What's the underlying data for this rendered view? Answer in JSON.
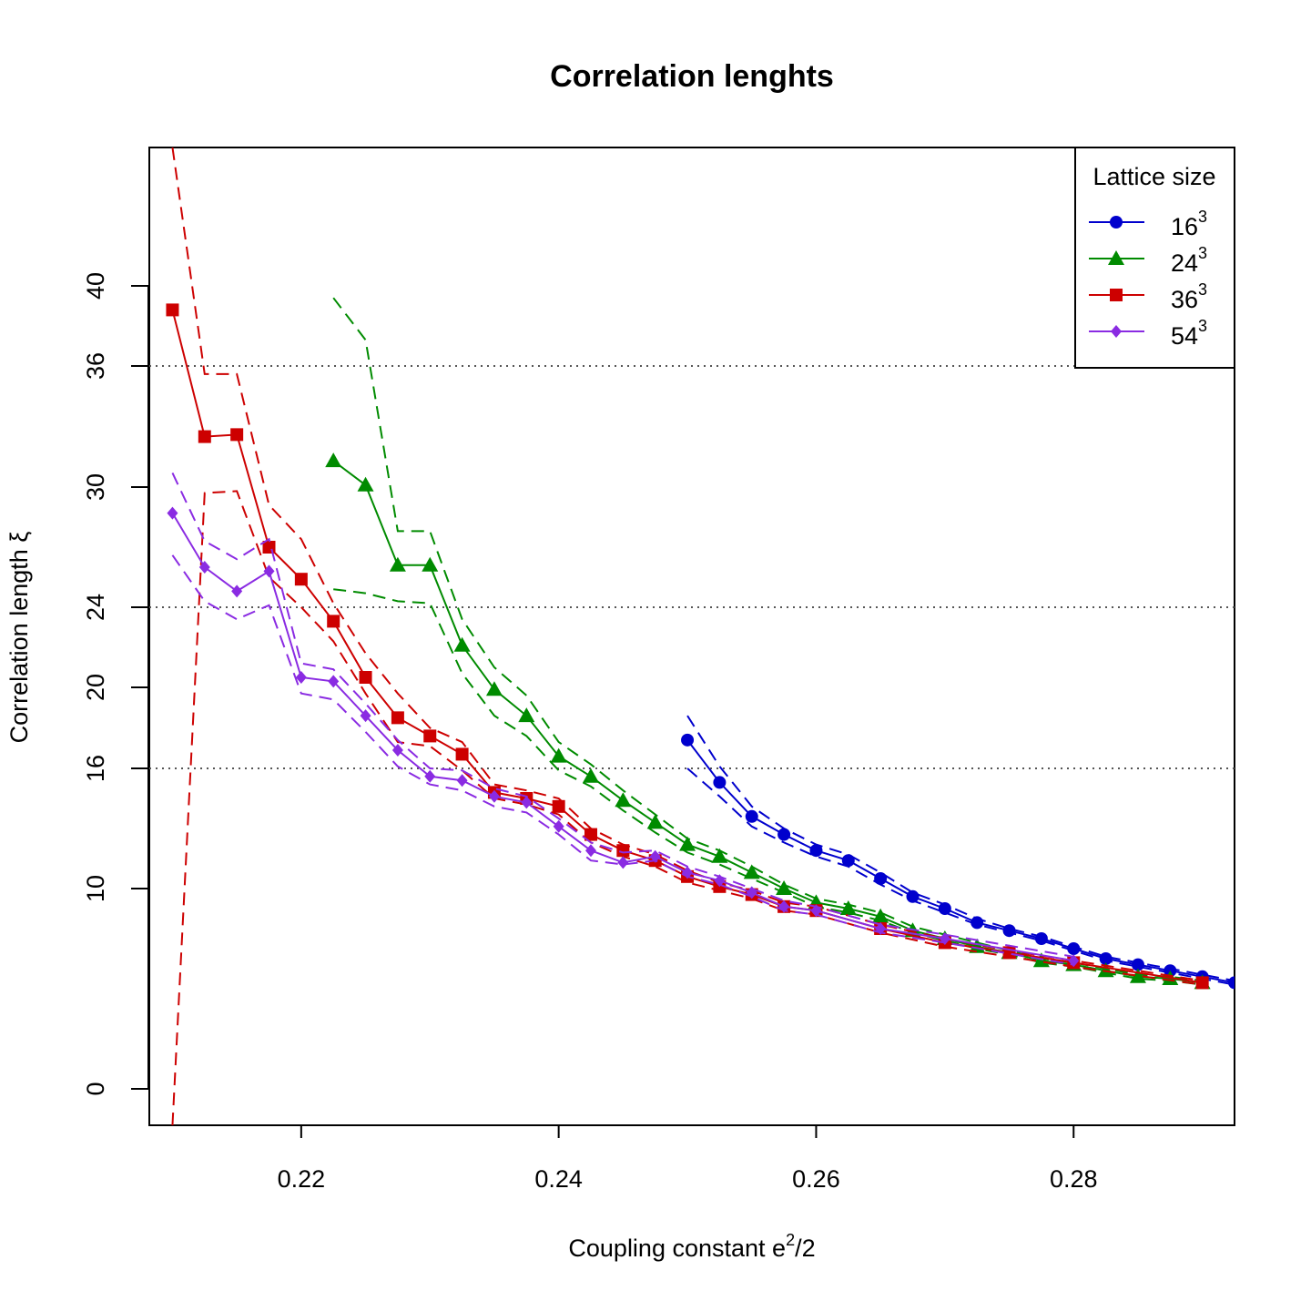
{
  "chart_data": {
    "type": "line",
    "title": "Correlation lenghts",
    "xlabel": "Coupling constant e^2/2",
    "xlabel_parts": {
      "base": "Coupling constant e",
      "sup": "2",
      "rest": "/2"
    },
    "ylabel": "Correlation length ξ",
    "x_ticks": [
      0.22,
      0.24,
      0.26,
      0.28
    ],
    "x_tick_labels": [
      "0.22",
      "0.24",
      "0.26",
      "0.28"
    ],
    "y_ticks": [
      0,
      10,
      16,
      20,
      24,
      30,
      36,
      40
    ],
    "y_tick_labels": [
      "0",
      "10",
      "16",
      "20",
      "24",
      "30",
      "36",
      "40"
    ],
    "hlines": [
      16,
      24,
      36
    ],
    "grid": false,
    "xlim": [
      0.2082,
      0.2925
    ],
    "ylim": [
      -1.8,
      46.8
    ],
    "legend": {
      "title": "Lattice size",
      "position": "top-right",
      "entries": [
        {
          "base": "16",
          "sup": "3"
        },
        {
          "base": "24",
          "sup": "3"
        },
        {
          "base": "36",
          "sup": "3"
        },
        {
          "base": "54",
          "sup": "3"
        }
      ]
    },
    "series": [
      {
        "name": "16^3",
        "color": "#0000CD",
        "marker": "circle",
        "x": [
          0.25,
          0.2525,
          0.255,
          0.2575,
          0.26,
          0.2625,
          0.265,
          0.2675,
          0.27,
          0.2725,
          0.275,
          0.2775,
          0.28,
          0.2825,
          0.285,
          0.2875,
          0.29,
          0.2925
        ],
        "y": [
          17.4,
          15.3,
          13.6,
          12.7,
          11.9,
          11.4,
          10.5,
          9.6,
          9.0,
          8.3,
          7.9,
          7.5,
          7.0,
          6.5,
          6.2,
          5.9,
          5.6,
          5.3
        ],
        "upper": [
          18.6,
          16.1,
          14.1,
          13.0,
          12.2,
          11.7,
          10.8,
          9.8,
          9.2,
          8.5,
          8.0,
          7.6,
          7.1,
          6.6,
          6.3,
          6.0,
          5.7,
          5.4
        ],
        "lower": [
          16.0,
          14.6,
          13.1,
          12.3,
          11.6,
          11.1,
          10.2,
          9.4,
          8.8,
          8.2,
          7.8,
          7.4,
          6.9,
          6.4,
          6.1,
          5.8,
          5.5,
          5.2
        ]
      },
      {
        "name": "24^3",
        "color": "#008B00",
        "marker": "triangle",
        "x": [
          0.2225,
          0.225,
          0.2275,
          0.23,
          0.2325,
          0.235,
          0.2375,
          0.24,
          0.2425,
          0.245,
          0.2475,
          0.25,
          0.2525,
          0.255,
          0.2575,
          0.26,
          0.2625,
          0.265,
          0.2675,
          0.27,
          0.2725,
          0.275,
          0.2775,
          0.28,
          0.2825,
          0.285,
          0.2875,
          0.29
        ],
        "y": [
          31.3,
          30.1,
          26.1,
          26.1,
          22.1,
          19.9,
          18.6,
          16.6,
          15.6,
          14.4,
          13.3,
          12.2,
          11.6,
          10.8,
          10.0,
          9.3,
          9.0,
          8.6,
          7.9,
          7.5,
          7.1,
          6.8,
          6.4,
          6.2,
          5.9,
          5.6,
          5.5,
          5.3
        ],
        "upper": [
          39.4,
          37.3,
          27.8,
          27.8,
          23.4,
          21.0,
          19.6,
          17.3,
          16.2,
          14.9,
          13.7,
          12.5,
          11.9,
          11.1,
          10.2,
          9.5,
          9.2,
          8.8,
          8.1,
          7.7,
          7.3,
          6.9,
          6.5,
          6.3,
          6.0,
          5.7,
          5.6,
          5.4
        ],
        "lower": [
          24.9,
          24.7,
          24.3,
          24.2,
          20.7,
          18.6,
          17.6,
          15.9,
          15.1,
          13.9,
          12.8,
          11.8,
          11.2,
          10.5,
          9.8,
          9.1,
          8.8,
          8.4,
          7.8,
          7.4,
          7.0,
          6.7,
          6.3,
          6.1,
          5.8,
          5.5,
          5.4,
          5.2
        ]
      },
      {
        "name": "36^3",
        "color": "#CD0000",
        "marker": "square",
        "x": [
          0.21,
          0.2125,
          0.215,
          0.2175,
          0.22,
          0.2225,
          0.225,
          0.2275,
          0.23,
          0.2325,
          0.235,
          0.2375,
          0.24,
          0.2425,
          0.245,
          0.2475,
          0.25,
          0.2525,
          0.255,
          0.2575,
          0.26,
          0.265,
          0.27,
          0.275,
          0.28,
          0.29
        ],
        "y": [
          38.8,
          32.5,
          32.6,
          27.0,
          25.4,
          23.3,
          20.5,
          18.5,
          17.6,
          16.7,
          14.8,
          14.5,
          14.1,
          12.7,
          11.9,
          11.4,
          10.6,
          10.1,
          9.7,
          9.1,
          8.9,
          8.0,
          7.3,
          6.8,
          6.3,
          5.3
        ],
        "upper": [
          46.8,
          35.6,
          35.6,
          29.1,
          27.4,
          24.2,
          21.7,
          19.7,
          18.0,
          17.3,
          15.2,
          14.9,
          14.5,
          13.0,
          12.2,
          11.7,
          10.9,
          10.3,
          9.9,
          9.3,
          9.1,
          8.2,
          7.5,
          6.9,
          6.4,
          5.4
        ],
        "lower": [
          -1.8,
          29.7,
          29.8,
          25.5,
          24.0,
          22.3,
          19.7,
          17.3,
          17.1,
          15.9,
          14.5,
          14.2,
          13.7,
          12.3,
          11.6,
          11.1,
          10.3,
          9.9,
          9.5,
          8.9,
          8.7,
          7.8,
          7.1,
          6.6,
          6.1,
          5.2
        ]
      },
      {
        "name": "54^3",
        "color": "#8A2BE2",
        "marker": "diamond",
        "x": [
          0.21,
          0.2125,
          0.215,
          0.2175,
          0.22,
          0.2225,
          0.225,
          0.2275,
          0.23,
          0.2325,
          0.235,
          0.2375,
          0.24,
          0.2425,
          0.245,
          0.2475,
          0.25,
          0.2525,
          0.255,
          0.2575,
          0.26,
          0.265,
          0.27,
          0.28
        ],
        "y": [
          28.7,
          26.0,
          24.8,
          25.8,
          20.5,
          20.3,
          18.6,
          16.9,
          15.6,
          15.4,
          14.6,
          14.3,
          13.1,
          11.9,
          11.3,
          11.6,
          10.8,
          10.4,
          9.8,
          9.1,
          8.9,
          8.0,
          7.5,
          6.4
        ],
        "upper": [
          30.7,
          27.3,
          26.4,
          27.4,
          21.2,
          20.9,
          19.2,
          17.4,
          16.0,
          15.9,
          15.0,
          14.6,
          13.5,
          12.3,
          11.8,
          11.9,
          11.1,
          10.6,
          10.0,
          9.4,
          9.1,
          8.2,
          7.7,
          6.6
        ],
        "lower": [
          26.6,
          24.3,
          23.4,
          24.1,
          19.7,
          19.4,
          17.8,
          16.1,
          15.2,
          14.9,
          14.1,
          13.8,
          12.7,
          11.4,
          11.2,
          11.4,
          10.6,
          10.2,
          9.6,
          8.9,
          8.7,
          7.8,
          7.3,
          6.2
        ]
      }
    ]
  }
}
